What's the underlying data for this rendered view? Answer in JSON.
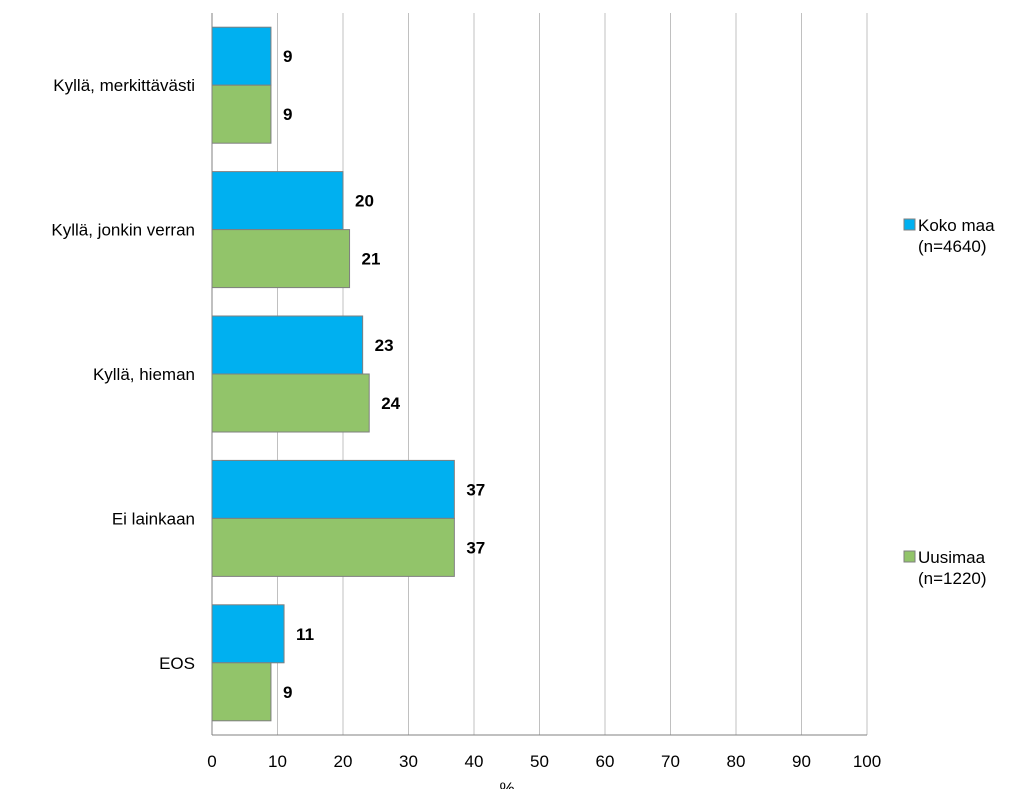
{
  "chart_data": {
    "type": "bar",
    "orientation": "horizontal",
    "categories": [
      "Kyllä, merkittävästi",
      "Kyllä, jonkin verran",
      "Kyllä, hieman",
      "Ei lainkaan",
      "EOS"
    ],
    "series": [
      {
        "name": "Koko maa (n=4640)",
        "legend_lines": [
          "Koko maa",
          "(n=4640)"
        ],
        "color": "#00b0f0",
        "values": [
          9,
          20,
          23,
          37,
          11
        ]
      },
      {
        "name": "Uusimaa (n=1220)",
        "legend_lines": [
          "Uusimaa",
          "(n=1220)"
        ],
        "color": "#92c46a",
        "values": [
          9,
          21,
          24,
          37,
          9
        ]
      }
    ],
    "xlim": [
      0,
      100
    ],
    "xticks": [
      0,
      10,
      20,
      30,
      40,
      50,
      60,
      70,
      80,
      90,
      100
    ],
    "xlabel": "%",
    "ylabel": "",
    "title": "",
    "grid": true,
    "legend_position": "right"
  }
}
